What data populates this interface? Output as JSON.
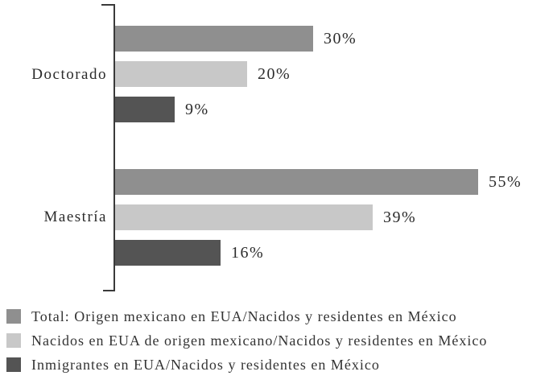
{
  "chart_data": {
    "type": "bar",
    "orientation": "horizontal",
    "title": "",
    "xlabel": "",
    "ylabel": "",
    "categories": [
      "Doctorado",
      "Maestría"
    ],
    "series": [
      {
        "name": "Total: Origen mexicano en EUA/Nacidos y residentes en México",
        "color": "#8f8f8f",
        "values": [
          30,
          55
        ],
        "labels": [
          "30%",
          "55%"
        ]
      },
      {
        "name": "Nacidos en EUA de origen mexicano/Nacidos y residentes en México",
        "color": "#c8c8c8",
        "values": [
          20,
          39
        ],
        "labels": [
          "20%",
          "39%"
        ]
      },
      {
        "name": "Inmigrantes en EUA/Nacidos y residentes en México",
        "color": "#545454",
        "values": [
          9,
          16
        ],
        "labels": [
          "9%",
          "16%"
        ]
      }
    ],
    "unit": "%",
    "xlim": [
      0,
      60
    ],
    "grid": false,
    "legend_position": "bottom-left",
    "axis_color": "#3a3a3a"
  }
}
